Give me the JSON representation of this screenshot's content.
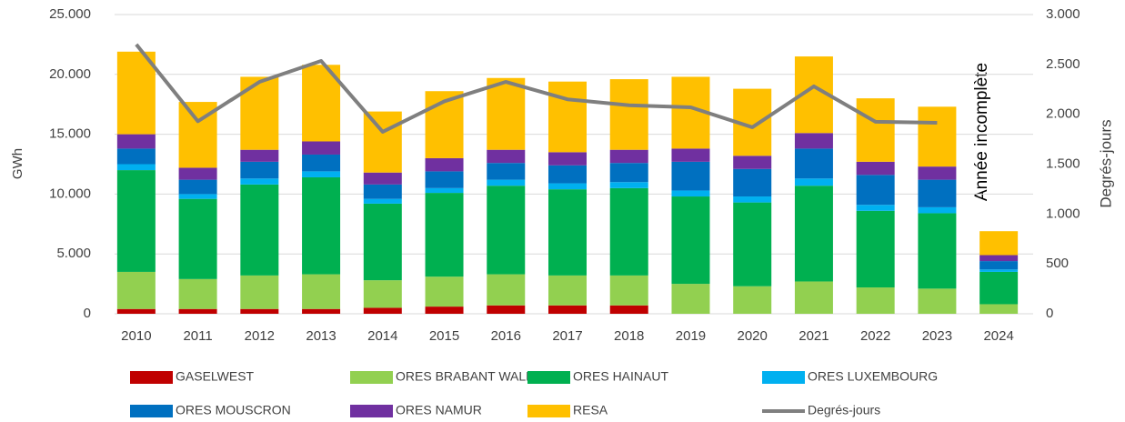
{
  "chart_data": {
    "type": "bar",
    "categories": [
      "2010",
      "2011",
      "2012",
      "2013",
      "2014",
      "2015",
      "2016",
      "2017",
      "2018",
      "2019",
      "2020",
      "2021",
      "2022",
      "2023",
      "2024"
    ],
    "series": [
      {
        "name": "GASELWEST",
        "color": "#c00000",
        "values": [
          400,
          400,
          400,
          400,
          500,
          600,
          700,
          700,
          700,
          0,
          0,
          0,
          0,
          0,
          0
        ]
      },
      {
        "name": "ORES BRABANT WALLON",
        "color": "#92d050",
        "values": [
          3100,
          2500,
          2800,
          2900,
          2300,
          2500,
          2600,
          2500,
          2500,
          2500,
          2300,
          2700,
          2200,
          2100,
          800
        ]
      },
      {
        "name": "ORES HAINAUT",
        "color": "#00b050",
        "values": [
          8500,
          6700,
          7600,
          8100,
          6400,
          7000,
          7400,
          7200,
          7300,
          7300,
          7000,
          8000,
          6400,
          6300,
          2700
        ]
      },
      {
        "name": "ORES LUXEMBOURG",
        "color": "#00b0f0",
        "values": [
          500,
          400,
          500,
          500,
          400,
          400,
          500,
          500,
          500,
          500,
          500,
          600,
          500,
          500,
          200
        ]
      },
      {
        "name": "ORES MOUSCRON",
        "color": "#0070c0",
        "values": [
          1300,
          1200,
          1400,
          1400,
          1200,
          1400,
          1400,
          1500,
          1600,
          2400,
          2300,
          2500,
          2500,
          2300,
          700
        ]
      },
      {
        "name": "ORES NAMUR",
        "color": "#7030a0",
        "values": [
          1200,
          1000,
          1000,
          1100,
          1000,
          1100,
          1100,
          1100,
          1100,
          1100,
          1100,
          1300,
          1100,
          1100,
          500
        ]
      },
      {
        "name": "RESA",
        "color": "#ffc000",
        "values": [
          6900,
          5500,
          6100,
          6400,
          5100,
          5600,
          6000,
          5900,
          5900,
          6000,
          5600,
          6400,
          5300,
          5000,
          2000
        ]
      },
      {
        "name": "Degrés-jours",
        "color": "#7f7f7f",
        "type": "line",
        "axis": "y2",
        "values": [
          2700,
          1930,
          2325,
          2535,
          1824,
          2130,
          2325,
          2150,
          2090,
          2070,
          1870,
          2280,
          1925,
          1915,
          null
        ]
      }
    ],
    "y_label": "GWh",
    "y2_label": "Degrés-jours",
    "annotation": "Année incomplète",
    "ylim": [
      0,
      25000
    ],
    "yticks": [
      0,
      {
        "value": 5000,
        "label": "5.000"
      },
      {
        "value": 10000,
        "label": "10.000"
      },
      {
        "value": 15000,
        "label": "15.000"
      },
      {
        "value": 20000,
        "label": "20.000"
      },
      {
        "value": 25000,
        "label": "25.000"
      }
    ],
    "y2lim": [
      0,
      3000
    ],
    "y2ticks": [
      0,
      500,
      {
        "value": 1000,
        "label": "1.000"
      },
      {
        "value": 1500,
        "label": "1.500"
      },
      {
        "value": 2000,
        "label": "2.000"
      },
      {
        "value": 2500,
        "label": "2.500"
      },
      {
        "value": 3000,
        "label": "3.000"
      }
    ],
    "grid": true,
    "stacked": true,
    "legend": "bottom"
  }
}
